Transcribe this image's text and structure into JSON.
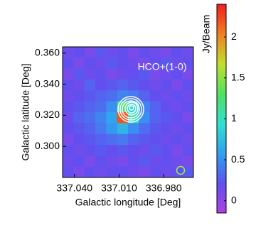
{
  "chart_data": {
    "type": "heatmap",
    "annotation": "HCO+(1-0)",
    "xlabel": "Galactic longitude [Deg]",
    "ylabel": "Galactic latitude [Deg]",
    "colorbar_label": "Jy/Beam",
    "xlim": [
      337.048,
      336.96
    ],
    "ylim": [
      0.28,
      0.364
    ],
    "xticks": [
      {
        "value": 337.04,
        "label": "337.040"
      },
      {
        "value": 337.01,
        "label": "337.010"
      },
      {
        "value": 336.98,
        "label": "336.980"
      }
    ],
    "yticks": [
      {
        "value": 0.3,
        "label": "0.300"
      },
      {
        "value": 0.32,
        "label": "0.320"
      },
      {
        "value": 0.34,
        "label": "0.340"
      },
      {
        "value": 0.36,
        "label": "0.360"
      }
    ],
    "clim": [
      -0.15,
      2.4
    ],
    "cticks": [
      0,
      0.5,
      1,
      1.5,
      2
    ],
    "colormap": [
      "#b040e0",
      "#6050f0",
      "#30a0f0",
      "#30e0d0",
      "#50e060",
      "#c0e030",
      "#f08020",
      "#f02020"
    ],
    "z": [
      [
        0.15,
        0.2,
        0.1,
        0.25,
        0.15,
        0.2,
        0.1,
        0.2,
        0.15,
        0.1,
        0.2,
        0.15
      ],
      [
        0.2,
        0.1,
        0.2,
        0.15,
        0.25,
        0.2,
        0.15,
        0.1,
        0.2,
        0.25,
        0.15,
        0.2
      ],
      [
        0.1,
        0.25,
        0.15,
        0.2,
        0.1,
        0.15,
        0.2,
        0.25,
        0.1,
        0.15,
        0.2,
        0.1
      ],
      [
        0.2,
        0.15,
        0.3,
        0.2,
        0.25,
        0.3,
        0.25,
        0.2,
        0.15,
        0.2,
        0.1,
        0.2
      ],
      [
        0.15,
        0.2,
        0.25,
        0.3,
        0.35,
        0.45,
        0.4,
        0.3,
        0.2,
        0.15,
        0.2,
        0.15
      ],
      [
        0.2,
        0.25,
        0.3,
        0.35,
        0.5,
        1.2,
        0.9,
        0.45,
        0.3,
        0.2,
        0.15,
        0.2
      ],
      [
        0.15,
        0.3,
        0.35,
        0.45,
        0.6,
        2.2,
        1.0,
        0.5,
        0.3,
        0.25,
        0.2,
        0.1
      ],
      [
        0.2,
        0.25,
        0.3,
        0.4,
        0.55,
        0.7,
        0.5,
        0.35,
        0.25,
        0.2,
        0.15,
        0.2
      ],
      [
        0.1,
        0.2,
        0.25,
        0.3,
        0.35,
        0.4,
        0.3,
        0.25,
        0.2,
        0.15,
        0.2,
        0.15
      ],
      [
        0.2,
        0.15,
        0.2,
        0.25,
        0.2,
        0.25,
        0.2,
        0.15,
        0.25,
        0.2,
        0.1,
        0.2
      ],
      [
        0.15,
        0.2,
        0.1,
        0.2,
        0.15,
        0.1,
        0.2,
        0.25,
        0.15,
        0.2,
        0.15,
        0.1
      ],
      [
        0.2,
        0.1,
        0.2,
        0.15,
        0.2,
        0.2,
        0.15,
        0.1,
        0.2,
        0.15,
        0.2,
        0.25
      ]
    ]
  }
}
